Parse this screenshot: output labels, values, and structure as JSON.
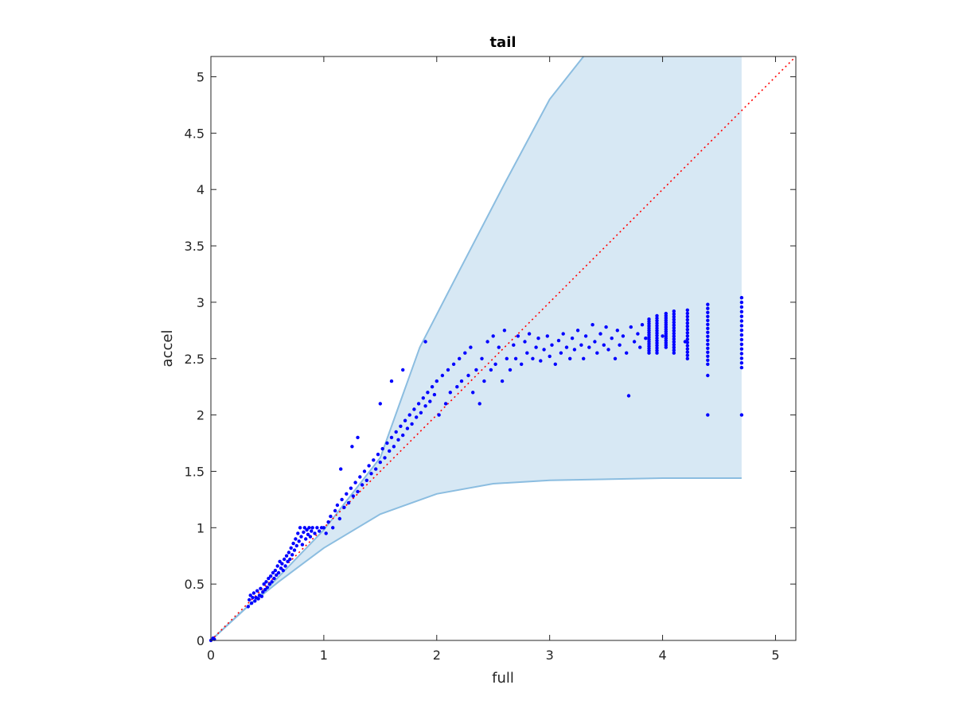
{
  "chart_data": {
    "type": "scatter",
    "title": "tail",
    "xlabel": "full",
    "ylabel": "accel",
    "xlim": [
      0,
      5.18
    ],
    "ylim": [
      0,
      5.18
    ],
    "xticks": [
      0,
      1,
      2,
      3,
      4,
      5
    ],
    "xtick_labels": [
      "0",
      "1",
      "2",
      "3",
      "4",
      "5"
    ],
    "yticks": [
      0,
      0.5,
      1,
      1.5,
      2,
      2.5,
      3,
      3.5,
      4,
      4.5,
      5
    ],
    "ytick_labels": [
      "0",
      "0.5",
      "1",
      "1.5",
      "2",
      "2.5",
      "3",
      "3.5",
      "4",
      "4.5",
      "5"
    ],
    "grid": false,
    "box": true,
    "reference_line": {
      "style": "dotted",
      "color": "#ff0000",
      "points": [
        [
          0,
          0
        ],
        [
          5.18,
          5.18
        ]
      ]
    },
    "band": {
      "fill": "#d7e8f4",
      "edge": "#8bbde0",
      "upper": [
        [
          0,
          0
        ],
        [
          0.5,
          0.46
        ],
        [
          1,
          0.98
        ],
        [
          1.5,
          1.62
        ],
        [
          1.85,
          2.6
        ],
        [
          2.2,
          3.28
        ],
        [
          2.6,
          4.05
        ],
        [
          3.0,
          4.8
        ],
        [
          3.3,
          5.18
        ]
      ],
      "lower": [
        [
          0,
          0
        ],
        [
          0.3,
          0.28
        ],
        [
          0.6,
          0.52
        ],
        [
          1.0,
          0.82
        ],
        [
          1.5,
          1.12
        ],
        [
          2.0,
          1.3
        ],
        [
          2.5,
          1.39
        ],
        [
          3.0,
          1.42
        ],
        [
          4.0,
          1.44
        ],
        [
          4.7,
          1.44
        ]
      ],
      "right_x": 4.7,
      "top_y": 5.18
    },
    "series": [
      {
        "color": "#0000ff",
        "points": [
          [
            0,
            0
          ],
          [
            0.02,
            0.02
          ],
          [
            0.03,
            0.01
          ],
          [
            0.33,
            0.3
          ],
          [
            0.34,
            0.36
          ],
          [
            0.35,
            0.4
          ],
          [
            0.36,
            0.33
          ],
          [
            0.37,
            0.38
          ],
          [
            0.38,
            0.42
          ],
          [
            0.39,
            0.35
          ],
          [
            0.4,
            0.38
          ],
          [
            0.41,
            0.44
          ],
          [
            0.42,
            0.37
          ],
          [
            0.43,
            0.4
          ],
          [
            0.44,
            0.46
          ],
          [
            0.45,
            0.39
          ],
          [
            0.46,
            0.43
          ],
          [
            0.47,
            0.5
          ],
          [
            0.48,
            0.45
          ],
          [
            0.49,
            0.52
          ],
          [
            0.5,
            0.47
          ],
          [
            0.51,
            0.55
          ],
          [
            0.52,
            0.5
          ],
          [
            0.53,
            0.57
          ],
          [
            0.54,
            0.52
          ],
          [
            0.55,
            0.6
          ],
          [
            0.56,
            0.55
          ],
          [
            0.57,
            0.62
          ],
          [
            0.58,
            0.58
          ],
          [
            0.59,
            0.66
          ],
          [
            0.6,
            0.6
          ],
          [
            0.61,
            0.7
          ],
          [
            0.62,
            0.64
          ],
          [
            0.63,
            0.68
          ],
          [
            0.64,
            0.62
          ],
          [
            0.65,
            0.72
          ],
          [
            0.66,
            0.66
          ],
          [
            0.67,
            0.75
          ],
          [
            0.68,
            0.7
          ],
          [
            0.69,
            0.78
          ],
          [
            0.7,
            0.72
          ],
          [
            0.71,
            0.82
          ],
          [
            0.72,
            0.76
          ],
          [
            0.73,
            0.86
          ],
          [
            0.74,
            0.8
          ],
          [
            0.75,
            0.9
          ],
          [
            0.76,
            0.84
          ],
          [
            0.77,
            0.95
          ],
          [
            0.78,
            0.88
          ],
          [
            0.79,
            1.0
          ],
          [
            0.8,
            0.92
          ],
          [
            0.81,
            0.85
          ],
          [
            0.82,
            0.96
          ],
          [
            0.83,
            1.0
          ],
          [
            0.84,
            0.9
          ],
          [
            0.85,
            0.98
          ],
          [
            0.86,
            0.94
          ],
          [
            0.87,
            1.0
          ],
          [
            0.88,
            0.92
          ],
          [
            0.89,
            0.97
          ],
          [
            0.9,
            1.0
          ],
          [
            0.92,
            0.95
          ],
          [
            0.94,
            1.0
          ],
          [
            0.96,
            0.97
          ],
          [
            0.98,
            1.0
          ],
          [
            1.0,
            1.0
          ],
          [
            1.02,
            0.95
          ],
          [
            1.04,
            1.05
          ],
          [
            1.06,
            1.1
          ],
          [
            1.08,
            1.0
          ],
          [
            1.1,
            1.15
          ],
          [
            1.12,
            1.2
          ],
          [
            1.14,
            1.08
          ],
          [
            1.16,
            1.25
          ],
          [
            1.18,
            1.18
          ],
          [
            1.2,
            1.3
          ],
          [
            1.22,
            1.22
          ],
          [
            1.24,
            1.35
          ],
          [
            1.26,
            1.28
          ],
          [
            1.28,
            1.4
          ],
          [
            1.3,
            1.32
          ],
          [
            1.32,
            1.45
          ],
          [
            1.34,
            1.38
          ],
          [
            1.36,
            1.5
          ],
          [
            1.38,
            1.42
          ],
          [
            1.4,
            1.55
          ],
          [
            1.42,
            1.48
          ],
          [
            1.44,
            1.6
          ],
          [
            1.46,
            1.52
          ],
          [
            1.48,
            1.65
          ],
          [
            1.5,
            1.58
          ],
          [
            1.52,
            1.7
          ],
          [
            1.54,
            1.62
          ],
          [
            1.56,
            1.75
          ],
          [
            1.58,
            1.68
          ],
          [
            1.6,
            1.8
          ],
          [
            1.62,
            1.72
          ],
          [
            1.64,
            1.85
          ],
          [
            1.66,
            1.78
          ],
          [
            1.68,
            1.9
          ],
          [
            1.7,
            1.82
          ],
          [
            1.72,
            1.95
          ],
          [
            1.74,
            1.88
          ],
          [
            1.76,
            2.0
          ],
          [
            1.78,
            1.92
          ],
          [
            1.8,
            2.05
          ],
          [
            1.82,
            1.98
          ],
          [
            1.84,
            2.1
          ],
          [
            1.86,
            2.02
          ],
          [
            1.88,
            2.15
          ],
          [
            1.9,
            2.08
          ],
          [
            1.92,
            2.2
          ],
          [
            1.94,
            2.12
          ],
          [
            1.96,
            2.25
          ],
          [
            1.98,
            2.18
          ],
          [
            2.0,
            2.3
          ],
          [
            2.02,
            2.0
          ],
          [
            2.05,
            2.35
          ],
          [
            2.08,
            2.1
          ],
          [
            2.1,
            2.4
          ],
          [
            2.12,
            2.2
          ],
          [
            2.15,
            2.45
          ],
          [
            2.18,
            2.25
          ],
          [
            2.2,
            2.5
          ],
          [
            2.22,
            2.3
          ],
          [
            2.25,
            2.55
          ],
          [
            2.28,
            2.35
          ],
          [
            2.3,
            2.6
          ],
          [
            2.32,
            2.2
          ],
          [
            2.35,
            2.4
          ],
          [
            2.38,
            2.1
          ],
          [
            2.4,
            2.5
          ],
          [
            2.42,
            2.3
          ],
          [
            2.45,
            2.65
          ],
          [
            2.48,
            2.4
          ],
          [
            2.5,
            2.7
          ],
          [
            2.52,
            2.45
          ],
          [
            2.55,
            2.6
          ],
          [
            2.58,
            2.3
          ],
          [
            2.6,
            2.75
          ],
          [
            2.62,
            2.5
          ],
          [
            2.65,
            2.4
          ],
          [
            2.68,
            2.62
          ],
          [
            2.7,
            2.5
          ],
          [
            2.72,
            2.7
          ],
          [
            2.75,
            2.45
          ],
          [
            2.78,
            2.65
          ],
          [
            2.8,
            2.55
          ],
          [
            2.82,
            2.72
          ],
          [
            2.85,
            2.5
          ],
          [
            2.88,
            2.6
          ],
          [
            2.9,
            2.68
          ],
          [
            2.92,
            2.48
          ],
          [
            2.95,
            2.58
          ],
          [
            2.98,
            2.7
          ],
          [
            3.0,
            2.52
          ],
          [
            3.02,
            2.62
          ],
          [
            3.05,
            2.45
          ],
          [
            3.08,
            2.66
          ],
          [
            3.1,
            2.55
          ],
          [
            3.12,
            2.72
          ],
          [
            3.15,
            2.6
          ],
          [
            3.18,
            2.5
          ],
          [
            3.2,
            2.68
          ],
          [
            3.22,
            2.58
          ],
          [
            3.25,
            2.75
          ],
          [
            3.28,
            2.62
          ],
          [
            3.3,
            2.5
          ],
          [
            3.32,
            2.7
          ],
          [
            3.35,
            2.6
          ],
          [
            3.38,
            2.8
          ],
          [
            3.4,
            2.65
          ],
          [
            3.42,
            2.55
          ],
          [
            3.45,
            2.72
          ],
          [
            3.48,
            2.62
          ],
          [
            3.5,
            2.78
          ],
          [
            3.52,
            2.58
          ],
          [
            3.55,
            2.68
          ],
          [
            3.58,
            2.5
          ],
          [
            3.6,
            2.75
          ],
          [
            3.62,
            2.62
          ],
          [
            3.65,
            2.7
          ],
          [
            3.68,
            2.55
          ],
          [
            3.7,
            2.17
          ],
          [
            3.72,
            2.78
          ],
          [
            3.75,
            2.65
          ],
          [
            3.78,
            2.72
          ],
          [
            3.8,
            2.6
          ],
          [
            3.82,
            2.8
          ],
          [
            3.85,
            2.68
          ],
          [
            1.9,
            2.65
          ],
          [
            1.3,
            1.8
          ],
          [
            1.25,
            1.72
          ],
          [
            1.15,
            1.52
          ],
          [
            1.5,
            2.1
          ],
          [
            1.6,
            2.3
          ],
          [
            1.7,
            2.4
          ],
          [
            4.4,
            2.0
          ],
          [
            4.7,
            2.0
          ],
          [
            4.0,
            2.7
          ],
          [
            4.2,
            2.65
          ],
          [
            4.4,
            2.35
          ]
        ]
      }
    ],
    "vertical_clusters": [
      {
        "x": 3.88,
        "y_min": 2.55,
        "y_max": 2.85
      },
      {
        "x": 3.95,
        "y_min": 2.55,
        "y_max": 2.88
      },
      {
        "x": 4.03,
        "y_min": 2.6,
        "y_max": 2.9
      },
      {
        "x": 4.1,
        "y_min": 2.55,
        "y_max": 2.92
      },
      {
        "x": 4.22,
        "y_min": 2.5,
        "y_max": 2.93
      },
      {
        "x": 4.4,
        "y_min": 2.45,
        "y_max": 2.98
      },
      {
        "x": 4.7,
        "y_min": 2.42,
        "y_max": 3.04
      }
    ]
  }
}
